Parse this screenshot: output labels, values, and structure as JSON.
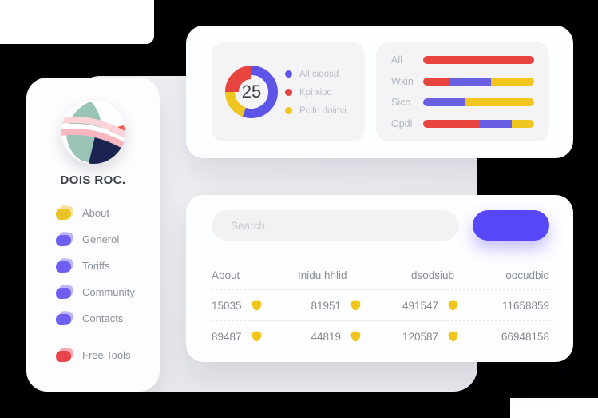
{
  "colors": {
    "red": "#E94540",
    "purple": "#6A5FE2",
    "yellow": "#EFC61E",
    "button": "#5847F8",
    "table_icon": "#F0C61D"
  },
  "sidebar": {
    "brand": "DOIS ROC.",
    "items": [
      {
        "label": "About",
        "color": "#EBC329"
      },
      {
        "label": "Generol",
        "color": "#6F5FF0"
      },
      {
        "label": "Toriffs",
        "color": "#6F5FF0"
      },
      {
        "label": "Community",
        "color": "#6F5FF0"
      },
      {
        "label": "Contacts",
        "color": "#6F5FF0"
      }
    ],
    "secondary_items": [
      {
        "label": "Free Tools",
        "color": "#E9444E"
      }
    ]
  },
  "stats_card": {
    "donut": {
      "center_value": "25",
      "segments": [
        {
          "name": "All cidosd",
          "color": "#5D55E8",
          "start_deg": 0,
          "end_deg": 200,
          "thick": false
        },
        {
          "name": "Pcifn doinvi",
          "color": "#EFC61E",
          "start_deg": 200,
          "end_deg": 270,
          "thick": false
        },
        {
          "name": "Kpi xioc",
          "color": "#E94540",
          "start_deg": 270,
          "end_deg": 360,
          "thick": true
        }
      ],
      "legend": [
        {
          "label": "All cidosd",
          "color": "#5D55E8"
        },
        {
          "label": "Kpi xioc",
          "color": "#E94540"
        },
        {
          "label": "Pcifn doinvi",
          "color": "#EFC61E"
        }
      ]
    },
    "bars": {
      "rows": [
        {
          "label": "All",
          "segments": [
            {
              "color": "#E94540",
              "pct": 100
            }
          ]
        },
        {
          "label": "Wxin",
          "segments": [
            {
              "color": "#E94540",
              "pct": 24
            },
            {
              "color": "#6A5FE2",
              "pct": 37
            },
            {
              "color": "#EFC61E",
              "pct": 39
            }
          ]
        },
        {
          "label": "Sico",
          "segments": [
            {
              "color": "#6A5FE2",
              "pct": 38
            },
            {
              "color": "#EFC61E",
              "pct": 62
            }
          ]
        },
        {
          "label": "Opdi",
          "segments": [
            {
              "color": "#E94540",
              "pct": 51
            },
            {
              "color": "#6A5FE2",
              "pct": 29
            },
            {
              "color": "#EFC61E",
              "pct": 20
            }
          ]
        }
      ]
    }
  },
  "table_card": {
    "search": {
      "placeholder": "Search..."
    },
    "button": {
      "label": ""
    },
    "columns": [
      "About",
      "Inidu hhlid",
      "dsodsiub",
      "oocudbid"
    ],
    "rows": [
      [
        {
          "value": "15035",
          "icon": "shield"
        },
        {
          "value": "81951",
          "icon": "shield"
        },
        {
          "value": "491547",
          "icon": "shield"
        },
        {
          "value": "11658859"
        }
      ],
      [
        {
          "value": "89487",
          "icon": "shield"
        },
        {
          "value": "44819",
          "icon": "shield"
        },
        {
          "value": "120587",
          "icon": "shield"
        },
        {
          "value": "66948158"
        }
      ]
    ]
  },
  "chart_data": [
    {
      "type": "pie",
      "subtype": "donut",
      "center_label": "25",
      "labels": [
        "All cidosd",
        "Kpi xioc",
        "Pcifn doinvi"
      ],
      "values_pct": [
        55.6,
        25,
        19.4
      ],
      "colors": [
        "#5D55E8",
        "#E94540",
        "#EFC61E"
      ],
      "legend_position": "right"
    },
    {
      "type": "bar",
      "orientation": "horizontal",
      "stacked": true,
      "categories": [
        "All",
        "Wxin",
        "Sico",
        "Opdi"
      ],
      "series": [
        {
          "name": "red",
          "color": "#E94540",
          "values_pct": [
            100,
            24,
            0,
            51
          ]
        },
        {
          "name": "purple",
          "color": "#6A5FE2",
          "values_pct": [
            0,
            37,
            38,
            29
          ]
        },
        {
          "name": "yellow",
          "color": "#EFC61E",
          "values_pct": [
            0,
            39,
            62,
            20
          ]
        }
      ],
      "xlim_pct": [
        0,
        100
      ]
    }
  ]
}
